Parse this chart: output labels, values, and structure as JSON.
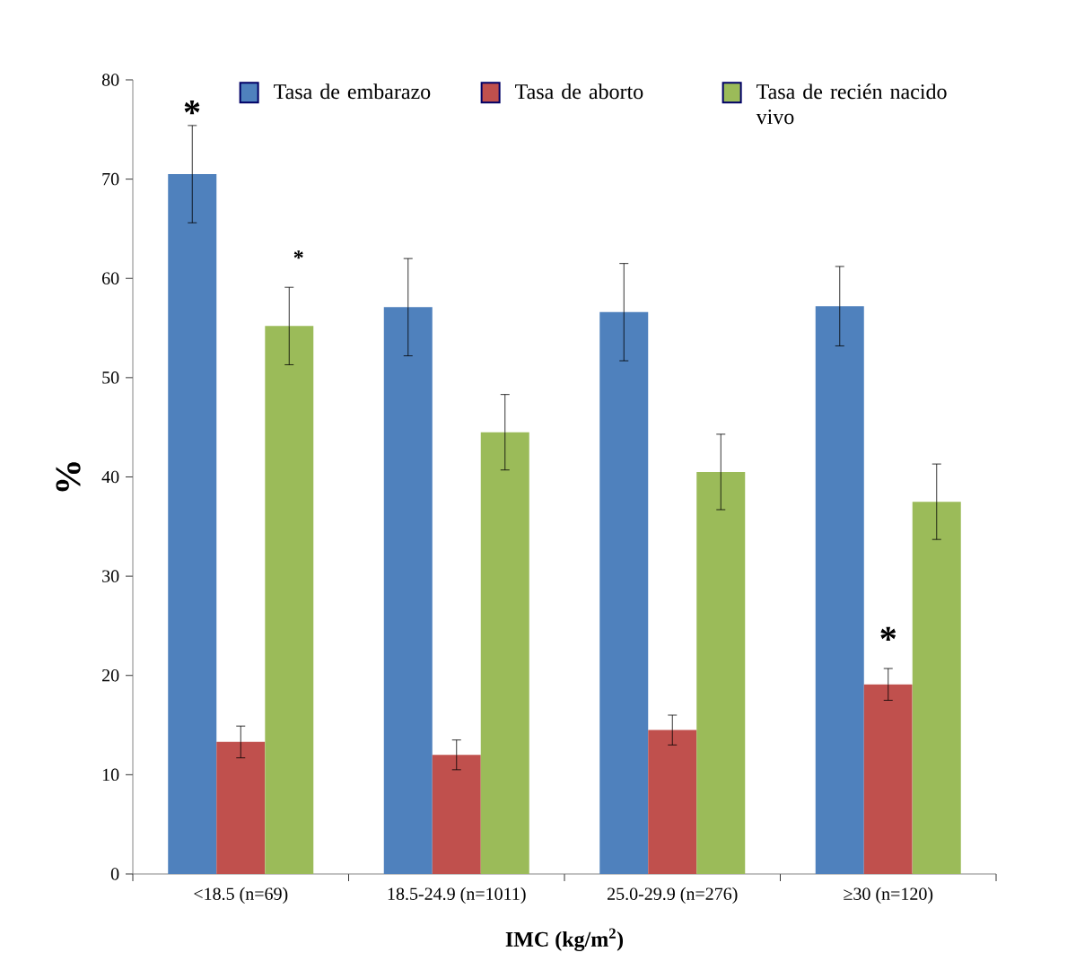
{
  "chart_data": {
    "type": "bar",
    "xlabel": "IMC (kg/m$^{2}$)",
    "ylabel": "%",
    "categories": [
      "<18.5 (n=69)",
      "18.5-24.9 (n=1011)",
      "25.0-29.9 (n=276)",
      "≥30 (n=120)"
    ],
    "series": [
      {
        "name": "Tasa de embarazo",
        "color": "#4f81bd",
        "values": [
          70.5,
          57.1,
          56.6,
          57.2
        ],
        "errors": [
          4.9,
          4.9,
          4.9,
          4.0
        ]
      },
      {
        "name": "Tasa de aborto",
        "color": "#c0504d",
        "values": [
          13.3,
          12.0,
          14.5,
          19.1
        ],
        "errors": [
          1.6,
          1.5,
          1.5,
          1.6
        ]
      },
      {
        "name": "Tasa de recién nacido vivo",
        "color": "#9bbb59",
        "values": [
          55.2,
          44.5,
          40.5,
          37.5
        ],
        "errors": [
          3.9,
          3.8,
          3.8,
          3.8
        ]
      }
    ],
    "ylim": [
      0,
      80
    ],
    "yticks": [
      0,
      10,
      20,
      30,
      40,
      50,
      60,
      70,
      80
    ],
    "grid": false,
    "legend": "top",
    "annotations": [
      "*",
      "*",
      "*"
    ]
  }
}
